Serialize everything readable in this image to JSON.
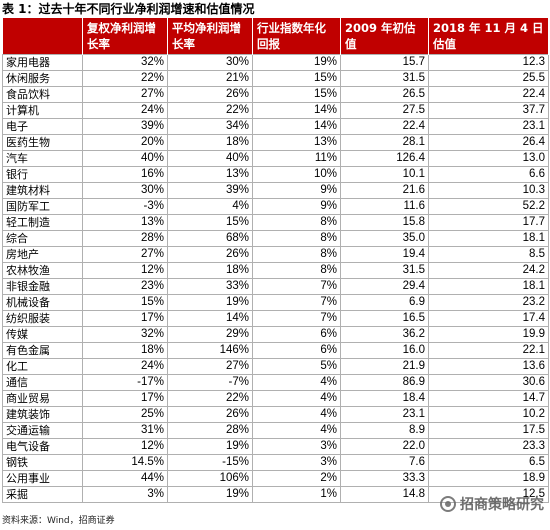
{
  "title": "表 1：过去十年不同行业净利润增速和估值情况",
  "headers": [
    "",
    "复权净利润增长率",
    "平均净利润增长率",
    "行业指数年化回报",
    "2009 年初估值",
    "2018 年 11 月 4 日估值"
  ],
  "rows": [
    [
      "家用电器",
      "32%",
      "30%",
      "19%",
      "15.7",
      "12.3"
    ],
    [
      "休闲服务",
      "22%",
      "21%",
      "15%",
      "31.5",
      "25.5"
    ],
    [
      "食品饮料",
      "27%",
      "26%",
      "15%",
      "26.5",
      "22.4"
    ],
    [
      "计算机",
      "24%",
      "22%",
      "14%",
      "27.5",
      "37.7"
    ],
    [
      "电子",
      "39%",
      "34%",
      "14%",
      "22.4",
      "23.1"
    ],
    [
      "医药生物",
      "20%",
      "18%",
      "13%",
      "28.1",
      "26.4"
    ],
    [
      "汽车",
      "40%",
      "40%",
      "11%",
      "126.4",
      "13.0"
    ],
    [
      "银行",
      "16%",
      "13%",
      "10%",
      "10.1",
      "6.6"
    ],
    [
      "建筑材料",
      "30%",
      "39%",
      "9%",
      "21.6",
      "10.3"
    ],
    [
      "国防军工",
      "-3%",
      "4%",
      "9%",
      "11.6",
      "52.2"
    ],
    [
      "轻工制造",
      "13%",
      "15%",
      "8%",
      "15.8",
      "17.7"
    ],
    [
      "综合",
      "28%",
      "68%",
      "8%",
      "35.0",
      "18.1"
    ],
    [
      "房地产",
      "27%",
      "26%",
      "8%",
      "19.4",
      "8.5"
    ],
    [
      "农林牧渔",
      "12%",
      "18%",
      "8%",
      "31.5",
      "24.2"
    ],
    [
      "非银金融",
      "23%",
      "33%",
      "7%",
      "29.4",
      "18.1"
    ],
    [
      "机械设备",
      "15%",
      "19%",
      "7%",
      "6.9",
      "23.2"
    ],
    [
      "纺织服装",
      "17%",
      "14%",
      "7%",
      "16.5",
      "17.4"
    ],
    [
      "传媒",
      "32%",
      "29%",
      "6%",
      "36.2",
      "19.9"
    ],
    [
      "有色金属",
      "18%",
      "146%",
      "6%",
      "16.0",
      "22.1"
    ],
    [
      "化工",
      "24%",
      "27%",
      "5%",
      "21.9",
      "13.6"
    ],
    [
      "通信",
      "-17%",
      "-7%",
      "4%",
      "86.9",
      "30.6"
    ],
    [
      "商业贸易",
      "17%",
      "22%",
      "4%",
      "18.4",
      "14.7"
    ],
    [
      "建筑装饰",
      "25%",
      "26%",
      "4%",
      "23.1",
      "10.2"
    ],
    [
      "交通运输",
      "31%",
      "28%",
      "4%",
      "8.9",
      "17.5"
    ],
    [
      "电气设备",
      "12%",
      "19%",
      "3%",
      "22.0",
      "23.3"
    ],
    [
      "钢铁",
      "14.5%",
      "-15%",
      "3%",
      "7.6",
      "6.5"
    ],
    [
      "公用事业",
      "44%",
      "106%",
      "2%",
      "33.3",
      "18.9"
    ],
    [
      "采掘",
      "3%",
      "19%",
      "1%",
      "14.8",
      "12.5"
    ]
  ],
  "source": "资料来源：Wind，招商证券",
  "watermark": "招商策略研究"
}
